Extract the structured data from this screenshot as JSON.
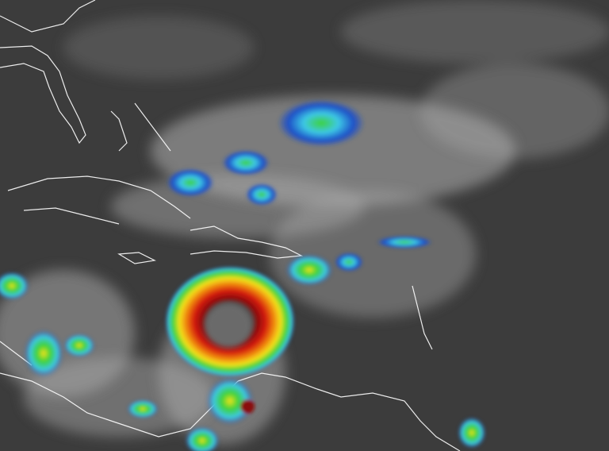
{
  "image": {
    "colors": {
      "background": "#3c3c3c",
      "cloud": "#bdbdbd",
      "coastline": "#ffffff",
      "storm_core": "#5a5a5a",
      "storm_red": "#d41a10",
      "storm_orange": "#f08a10",
      "storm_yellow": "#f4e21a",
      "storm_green": "#3cd23a",
      "cold_top_blue": "#1e50c8",
      "cold_top_cyan": "#3cc8e6"
    }
  }
}
